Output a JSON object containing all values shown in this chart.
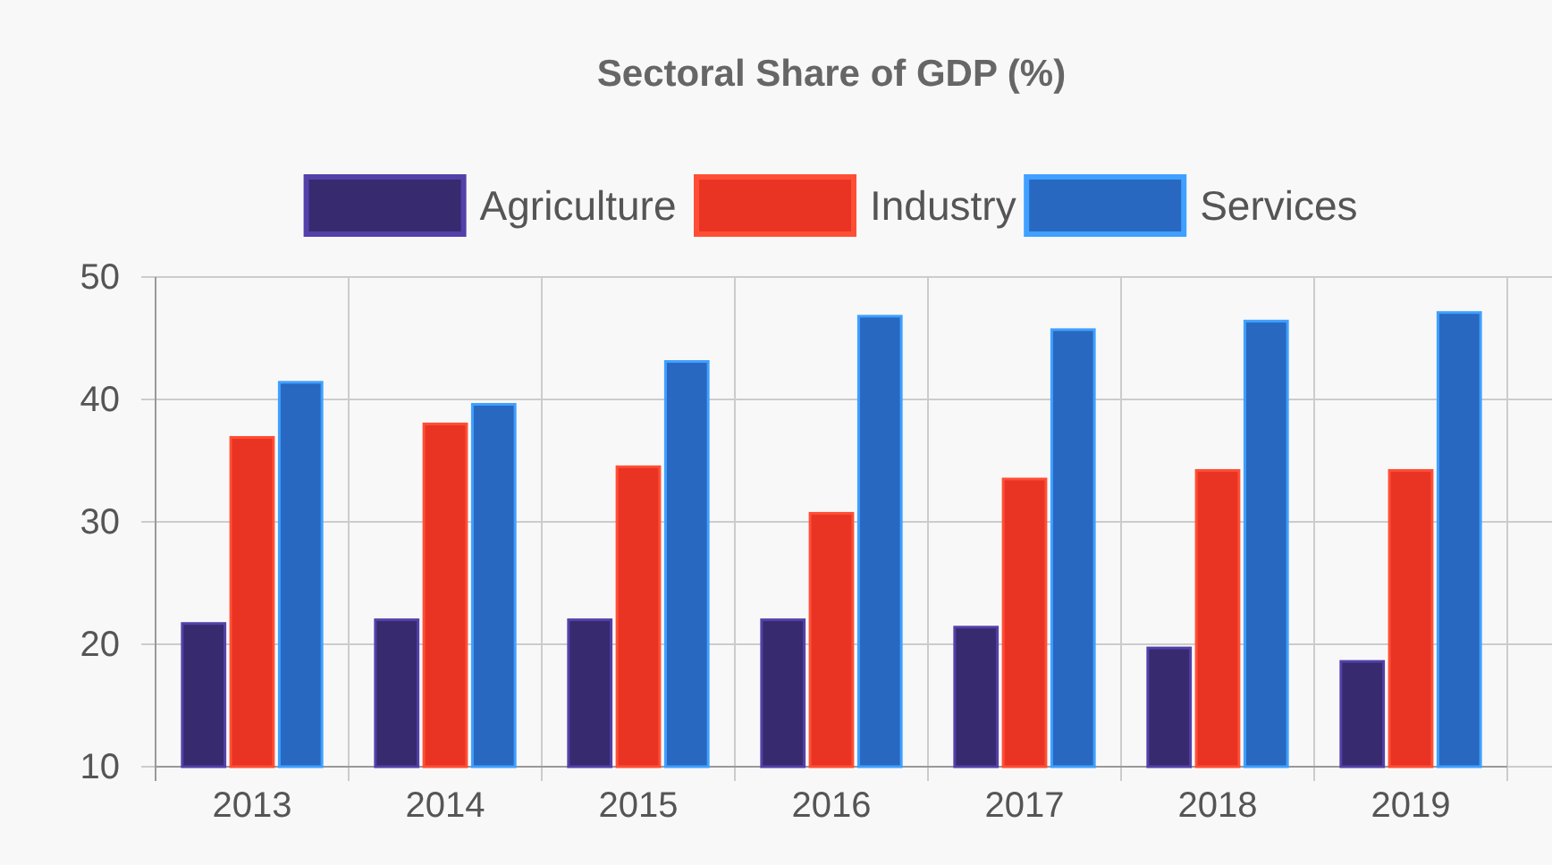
{
  "chart_data": {
    "type": "bar",
    "title": "Sectoral Share of GDP (%)",
    "categories": [
      "2013",
      "2014",
      "2015",
      "2016",
      "2017",
      "2018",
      "2019"
    ],
    "series": [
      {
        "name": "Agriculture",
        "color": "#372a6e",
        "values": [
          21.7,
          22.0,
          22.0,
          22.0,
          21.4,
          19.7,
          18.6
        ]
      },
      {
        "name": "Industry",
        "color": "#e93323",
        "values": [
          36.9,
          38.0,
          34.5,
          30.7,
          33.5,
          34.2,
          34.2
        ]
      },
      {
        "name": "Services",
        "color": "#2968c0",
        "values": [
          41.4,
          39.6,
          43.1,
          46.8,
          45.7,
          46.4,
          47.1
        ]
      }
    ],
    "ylim": [
      10,
      50
    ],
    "yticks": [
      10,
      20,
      30,
      40,
      50
    ],
    "grid": true,
    "legend": "top"
  }
}
